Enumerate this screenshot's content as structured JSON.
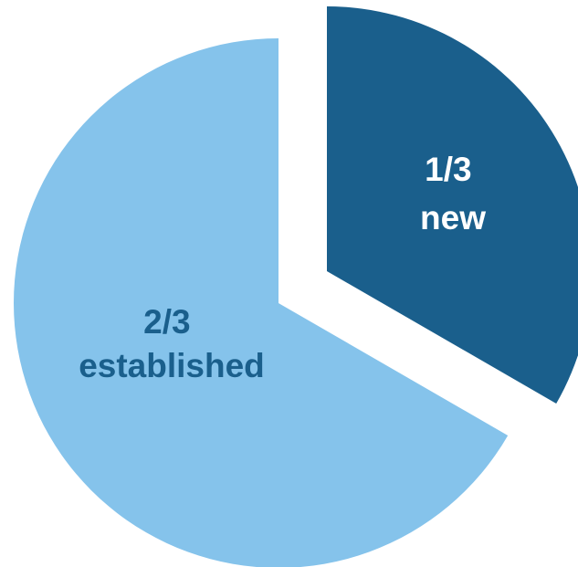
{
  "chart_data": {
    "type": "pie",
    "slices": [
      {
        "label": "new",
        "value_text": "1/3",
        "value": 0.3333,
        "color": "#1a5f8c",
        "label_color": "#ffffff",
        "exploded": true
      },
      {
        "label": "established",
        "value_text": "2/3",
        "value": 0.6667,
        "color": "#85c3eb",
        "label_color": "#1a5f8c",
        "exploded": false
      }
    ]
  }
}
